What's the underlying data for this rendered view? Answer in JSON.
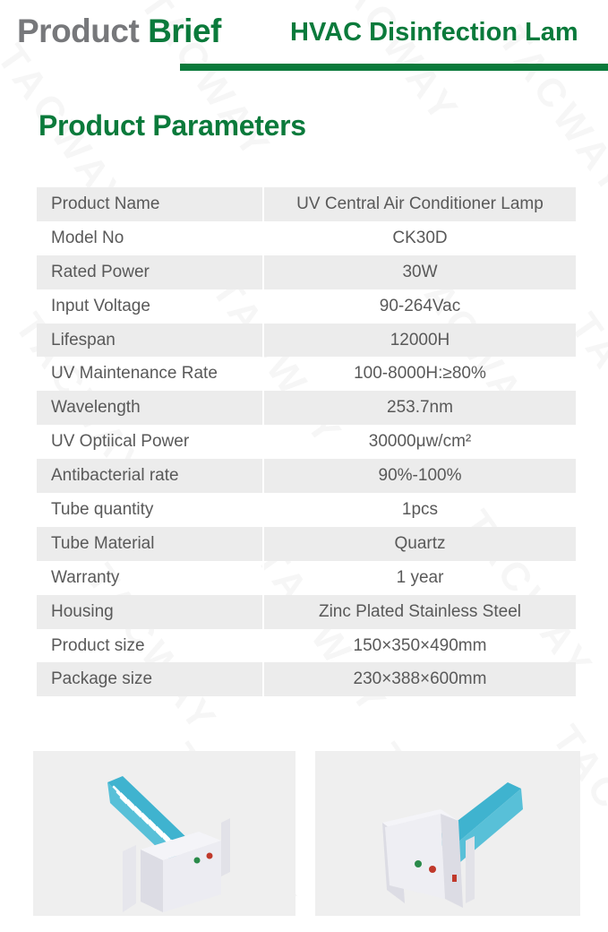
{
  "header": {
    "brief_part1": "Product",
    "brief_part2": "Brief",
    "product_title": "HVAC Disinfection Lam"
  },
  "section_title": "Product Parameters",
  "watermark": "TACWAY",
  "colors": {
    "brand_green": "#0a7a3b",
    "grey_text": "#77787b",
    "row_shade": "#ececec",
    "uv_tube_blue": "#3fb3cf"
  },
  "parameters": [
    {
      "label": "Product Name",
      "value": "UV Central Air Conditioner Lamp"
    },
    {
      "label": "Model No",
      "value": "CK30D"
    },
    {
      "label": "Rated Power",
      "value": "30W"
    },
    {
      "label": "Input Voltage",
      "value": "90-264Vac"
    },
    {
      "label": "Lifespan",
      "value": "12000H"
    },
    {
      "label": "UV Maintenance Rate",
      "value": "100-8000H:≥80%"
    },
    {
      "label": "Wavelength",
      "value": "253.7nm"
    },
    {
      "label": "UV Optiical Power",
      "value": "30000μw/cm²"
    },
    {
      "label": "Antibacterial rate",
      "value": "90%-100%"
    },
    {
      "label": "Tube quantity",
      "value": "1pcs"
    },
    {
      "label": "Tube Material",
      "value": "Quartz"
    },
    {
      "label": "Warranty",
      "value": "1 year"
    },
    {
      "label": "Housing",
      "value": "Zinc Plated Stainless Steel"
    },
    {
      "label": "Product size",
      "value": "150×350×490mm"
    },
    {
      "label": "Package size",
      "value": "230×388×600mm"
    }
  ]
}
